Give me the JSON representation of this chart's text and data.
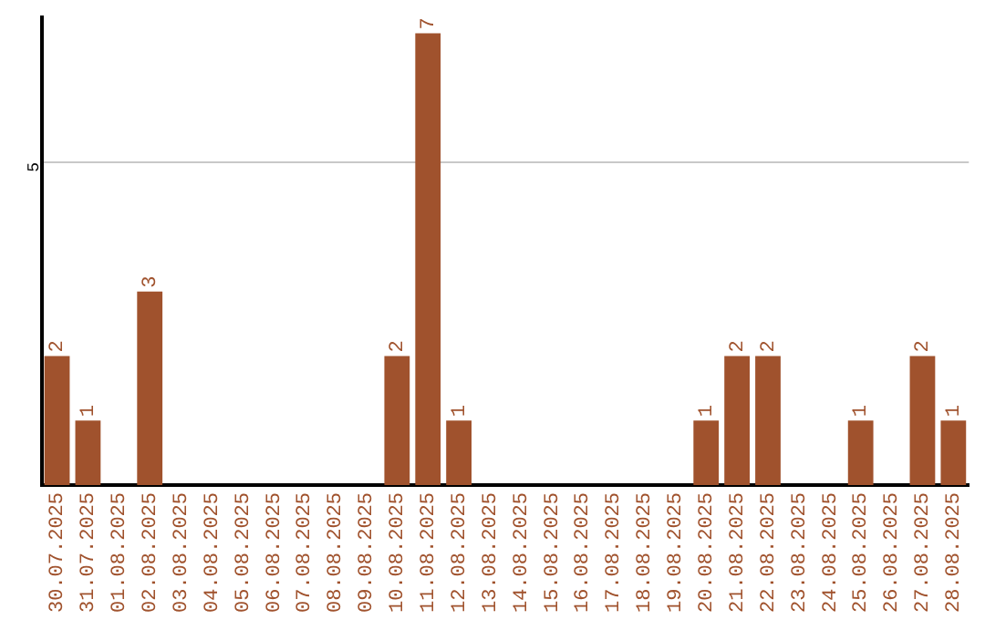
{
  "chart_data": {
    "type": "bar",
    "categories": [
      "30.07.2025",
      "31.07.2025",
      "01.08.2025",
      "02.08.2025",
      "03.08.2025",
      "04.08.2025",
      "05.08.2025",
      "06.08.2025",
      "07.08.2025",
      "08.08.2025",
      "09.08.2025",
      "10.08.2025",
      "11.08.2025",
      "12.08.2025",
      "13.08.2025",
      "14.08.2025",
      "15.08.2025",
      "16.08.2025",
      "17.08.2025",
      "18.08.2025",
      "19.08.2025",
      "20.08.2025",
      "21.08.2025",
      "22.08.2025",
      "23.08.2025",
      "24.08.2025",
      "25.08.2025",
      "26.08.2025",
      "27.08.2025",
      "28.08.2025"
    ],
    "values": [
      2,
      1,
      0,
      3,
      0,
      0,
      0,
      0,
      0,
      0,
      0,
      2,
      7,
      1,
      0,
      0,
      0,
      0,
      0,
      0,
      0,
      1,
      2,
      2,
      0,
      0,
      1,
      0,
      2,
      1
    ],
    "value_labels": [
      "2",
      "1",
      null,
      "3",
      null,
      null,
      null,
      null,
      null,
      null,
      null,
      "2",
      "7",
      "1",
      null,
      null,
      null,
      null,
      null,
      null,
      null,
      "1",
      "2",
      "2",
      null,
      null,
      "1",
      null,
      "2",
      "1"
    ],
    "color": "#a0522d",
    "ylim": [
      0,
      7.25
    ],
    "yticks": [
      5
    ],
    "grid": "y"
  }
}
